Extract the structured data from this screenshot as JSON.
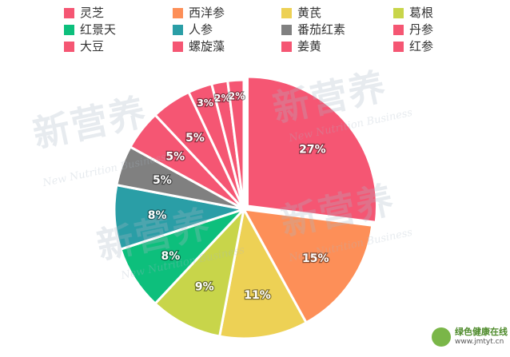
{
  "chart_data": {
    "type": "pie",
    "legend_position": "top",
    "categories": [
      "灵芝",
      "西洋参",
      "黄芪",
      "葛根",
      "红景天",
      "人参",
      "番茄红素",
      "丹参",
      "大豆",
      "螺旋藻",
      "姜黄",
      "红参"
    ],
    "values": [
      27,
      15,
      11,
      9,
      8,
      8,
      5,
      5,
      5,
      3,
      2,
      2
    ],
    "labels": [
      "27%",
      "15%",
      "11%",
      "9%",
      "8%",
      "8%",
      "5%",
      "5%",
      "5%",
      "3%",
      "2%",
      "2%"
    ],
    "colors": [
      "#f55673",
      "#fd8f58",
      "#edd155",
      "#c8d54a",
      "#0dbf7c",
      "#2a9ea6",
      "#808080",
      "#f55673",
      "#f55673",
      "#f55673",
      "#f55673",
      "#f55673"
    ]
  },
  "watermark": {
    "text_cn": "新营养",
    "text_en": "New Nutrition Business"
  },
  "site_logo": {
    "name": "绿色健康在线",
    "url": "www.jmtyt.cn"
  }
}
